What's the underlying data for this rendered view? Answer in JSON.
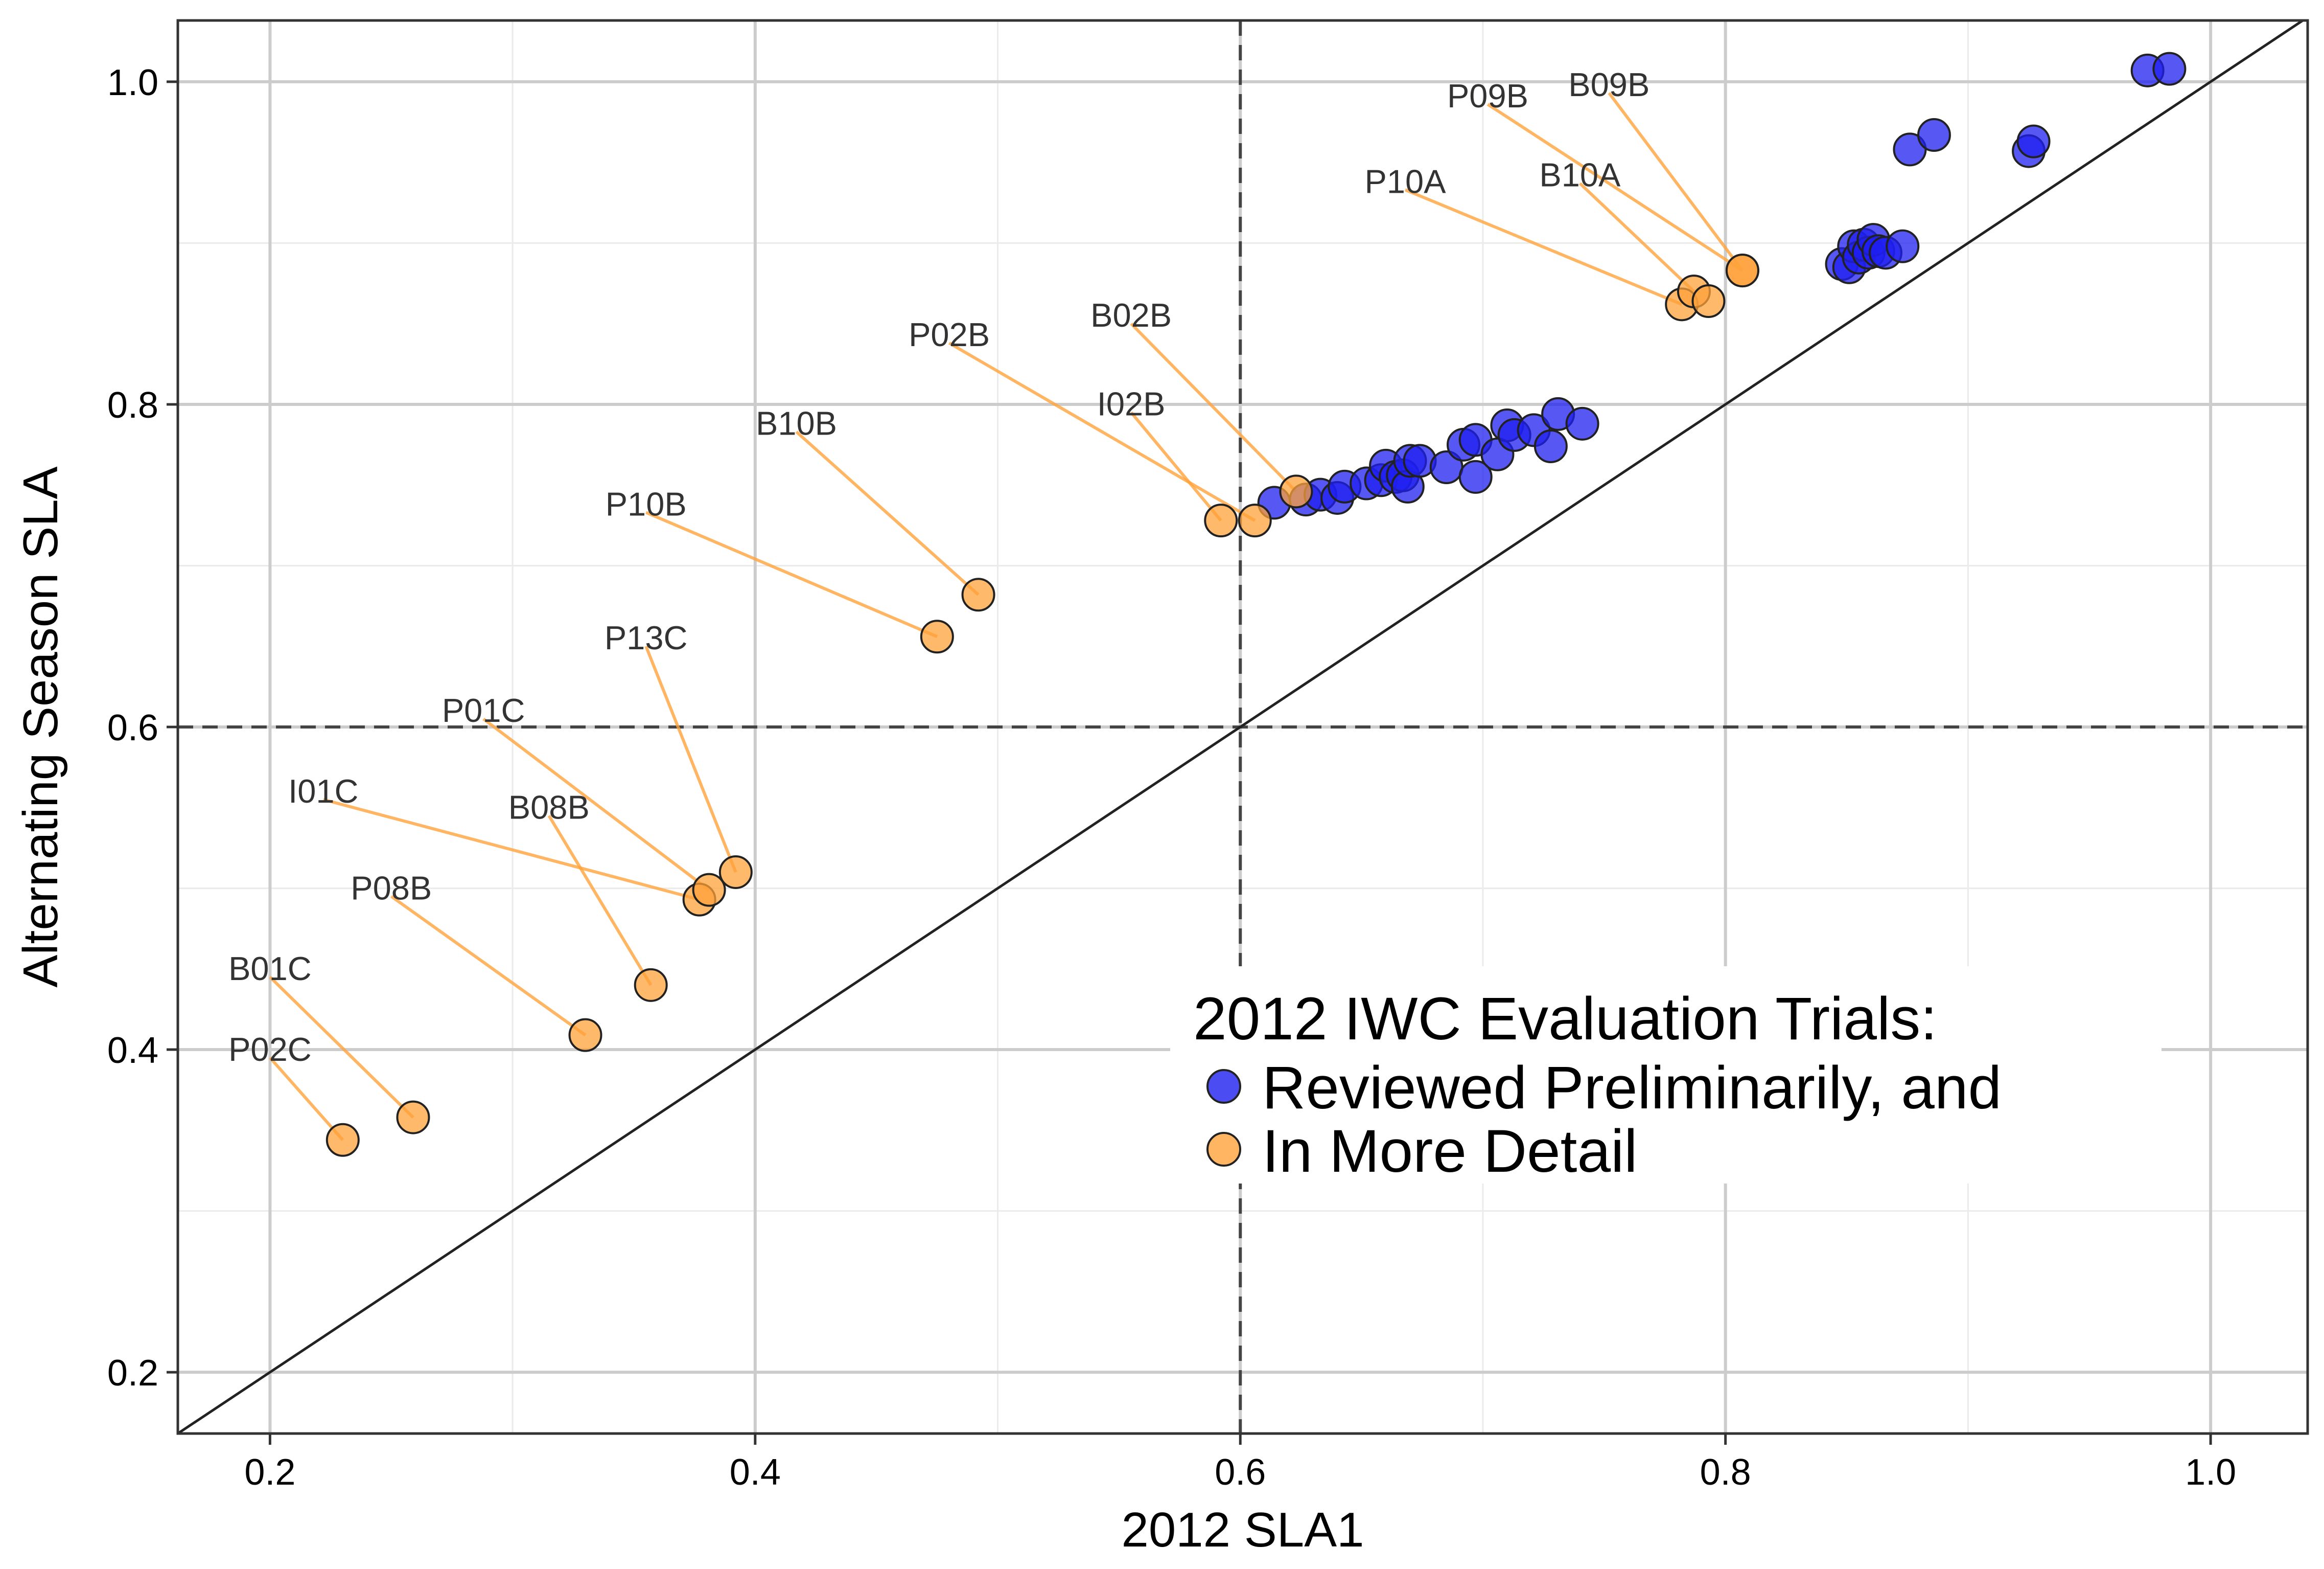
{
  "chart_data": {
    "type": "scatter",
    "xlabel": "2012 SLA1",
    "ylabel": "Alternating Season SLA",
    "xlim": [
      0.162,
      1.04
    ],
    "ylim": [
      0.162,
      1.038
    ],
    "x_ticks": [
      {
        "value": 0.2,
        "label": "0.2"
      },
      {
        "value": 0.4,
        "label": "0.4"
      },
      {
        "value": 0.6,
        "label": "0.6"
      },
      {
        "value": 0.8,
        "label": "0.8"
      },
      {
        "value": 1.0,
        "label": "1.0"
      }
    ],
    "y_ticks": [
      {
        "value": 0.2,
        "label": "0.2"
      },
      {
        "value": 0.4,
        "label": "0.4"
      },
      {
        "value": 0.6,
        "label": "0.6"
      },
      {
        "value": 0.8,
        "label": "0.8"
      },
      {
        "value": 1.0,
        "label": "1.0"
      }
    ],
    "x_minor": [
      0.3,
      0.5,
      0.7,
      0.9
    ],
    "y_minor": [
      0.3,
      0.5,
      0.7,
      0.9
    ],
    "grid": true,
    "reference_lines": {
      "vertical": 0.6,
      "horizontal": 0.6,
      "diagonal": "y = x"
    },
    "legend": {
      "title": "2012 IWC Evaluation Trials:",
      "position": "bottom-right",
      "entries": [
        {
          "label": "Reviewed Preliminarily, and",
          "color": "#1f1ff0"
        },
        {
          "label": "In More Detail",
          "color": "#ffa23a"
        }
      ]
    },
    "series": [
      {
        "name": "Reviewed Preliminarily, and",
        "color": "#1f1ff0",
        "points": [
          {
            "x": 0.614,
            "y": 0.739
          },
          {
            "x": 0.627,
            "y": 0.741
          },
          {
            "x": 0.633,
            "y": 0.744
          },
          {
            "x": 0.64,
            "y": 0.742
          },
          {
            "x": 0.643,
            "y": 0.749
          },
          {
            "x": 0.652,
            "y": 0.751
          },
          {
            "x": 0.658,
            "y": 0.753
          },
          {
            "x": 0.66,
            "y": 0.762
          },
          {
            "x": 0.664,
            "y": 0.755
          },
          {
            "x": 0.667,
            "y": 0.756
          },
          {
            "x": 0.669,
            "y": 0.749
          },
          {
            "x": 0.67,
            "y": 0.765
          },
          {
            "x": 0.674,
            "y": 0.765
          },
          {
            "x": 0.685,
            "y": 0.761
          },
          {
            "x": 0.692,
            "y": 0.775
          },
          {
            "x": 0.697,
            "y": 0.755
          },
          {
            "x": 0.697,
            "y": 0.778
          },
          {
            "x": 0.706,
            "y": 0.769
          },
          {
            "x": 0.71,
            "y": 0.787
          },
          {
            "x": 0.713,
            "y": 0.781
          },
          {
            "x": 0.721,
            "y": 0.784
          },
          {
            "x": 0.728,
            "y": 0.774
          },
          {
            "x": 0.731,
            "y": 0.794
          },
          {
            "x": 0.741,
            "y": 0.788
          },
          {
            "x": 0.848,
            "y": 0.887
          },
          {
            "x": 0.851,
            "y": 0.885
          },
          {
            "x": 0.853,
            "y": 0.898
          },
          {
            "x": 0.855,
            "y": 0.891
          },
          {
            "x": 0.857,
            "y": 0.899
          },
          {
            "x": 0.859,
            "y": 0.894
          },
          {
            "x": 0.861,
            "y": 0.902
          },
          {
            "x": 0.863,
            "y": 0.895
          },
          {
            "x": 0.866,
            "y": 0.894
          },
          {
            "x": 0.873,
            "y": 0.898
          },
          {
            "x": 0.876,
            "y": 0.958
          },
          {
            "x": 0.886,
            "y": 0.967
          },
          {
            "x": 0.925,
            "y": 0.957
          },
          {
            "x": 0.927,
            "y": 0.963
          },
          {
            "x": 0.974,
            "y": 1.007
          },
          {
            "x": 0.983,
            "y": 1.008
          }
        ]
      },
      {
        "name": "In More Detail",
        "color": "#ffa23a",
        "points": [
          {
            "x": 0.23,
            "y": 0.344,
            "label": "P02C",
            "lx": 0.2,
            "ly": 0.395
          },
          {
            "x": 0.259,
            "y": 0.358,
            "label": "B01C",
            "lx": 0.2,
            "ly": 0.445
          },
          {
            "x": 0.33,
            "y": 0.409,
            "label": "P08B",
            "lx": 0.25,
            "ly": 0.495
          },
          {
            "x": 0.357,
            "y": 0.44,
            "label": "B08B",
            "lx": 0.315,
            "ly": 0.545
          },
          {
            "x": 0.377,
            "y": 0.493,
            "label": "I01C",
            "lx": 0.222,
            "ly": 0.555
          },
          {
            "x": 0.381,
            "y": 0.499,
            "label": "P01C",
            "lx": 0.288,
            "ly": 0.605
          },
          {
            "x": 0.392,
            "y": 0.51,
            "label": "P13C",
            "lx": 0.355,
            "ly": 0.65
          },
          {
            "x": 0.475,
            "y": 0.656,
            "label": "P10B",
            "lx": 0.355,
            "ly": 0.733
          },
          {
            "x": 0.492,
            "y": 0.682,
            "label": "B10B",
            "lx": 0.417,
            "ly": 0.783
          },
          {
            "x": 0.592,
            "y": 0.728,
            "label": "I02B",
            "lx": 0.555,
            "ly": 0.795
          },
          {
            "x": 0.606,
            "y": 0.728,
            "label": "P02B",
            "lx": 0.48,
            "ly": 0.838
          },
          {
            "x": 0.623,
            "y": 0.746,
            "label": "B02B",
            "lx": 0.555,
            "ly": 0.85
          },
          {
            "x": 0.782,
            "y": 0.862,
            "label": "P10A",
            "lx": 0.668,
            "ly": 0.933
          },
          {
            "x": 0.787,
            "y": 0.87,
            "label": "B10A",
            "lx": 0.74,
            "ly": 0.937
          },
          {
            "x": 0.793,
            "y": 0.864
          },
          {
            "x": 0.807,
            "y": 0.883,
            "label": "B09B",
            "lx": 0.752,
            "ly": 0.993
          },
          {
            "x": 0.807,
            "y": 0.883,
            "label": "P09B",
            "lx": 0.702,
            "ly": 0.986
          }
        ]
      }
    ]
  }
}
